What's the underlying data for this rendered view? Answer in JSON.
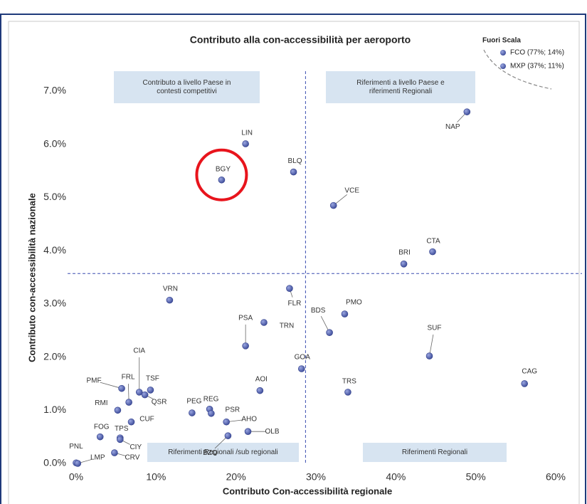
{
  "chart_data": {
    "type": "scatter",
    "title": "Contributo alla con-accessibilità per aeroporto",
    "xlabel": "Contributo Con-accessibilità regionale",
    "ylabel": "Contributo con-accessibilità nazionale",
    "xlim": [
      0,
      60
    ],
    "ylim": [
      0,
      7
    ],
    "xticks": [
      {
        "value": 0,
        "label": "0%"
      },
      {
        "value": 10,
        "label": "10%"
      },
      {
        "value": 20,
        "label": "20%"
      },
      {
        "value": 30,
        "label": "30%"
      },
      {
        "value": 40,
        "label": "40%"
      },
      {
        "value": 50,
        "label": "50%"
      },
      {
        "value": 60,
        "label": "60%"
      }
    ],
    "yticks": [
      {
        "value": 0,
        "label": "0.0%"
      },
      {
        "value": 1,
        "label": "1.0%"
      },
      {
        "value": 2,
        "label": "2.0%"
      },
      {
        "value": 3,
        "label": "3.0%"
      },
      {
        "value": 4,
        "label": "4.0%"
      },
      {
        "value": 5,
        "label": "5.0%"
      },
      {
        "value": 6,
        "label": "6.0%"
      },
      {
        "value": 7,
        "label": "7.0%"
      }
    ],
    "color": "#4a5aa8",
    "labels": [
      "LIN",
      "BGY",
      "BLQ",
      "VCE",
      "NAP",
      "CTA",
      "BRI",
      "VRN",
      "FLR",
      "PSA",
      "TRN",
      "BDS",
      "PMO",
      "SUF",
      "CAG",
      "TRS",
      "GOA",
      "AOI",
      "PMF",
      "FRL",
      "CIA",
      "TSF",
      "QSR",
      "RMI",
      "CUF",
      "FOG",
      "TPS",
      "CIY",
      "CRV",
      "PNL",
      "LMP",
      "PEG",
      "REG",
      "PSR",
      "AHO",
      "BZO",
      "OLB"
    ],
    "x": [
      21.2,
      18.2,
      27.2,
      32.2,
      48.9,
      44.6,
      41.0,
      11.7,
      26.7,
      21.2,
      23.5,
      31.7,
      33.6,
      44.2,
      56.1,
      34.0,
      28.2,
      23.0,
      5.7,
      6.6,
      7.9,
      9.3,
      8.6,
      5.2,
      6.9,
      3.0,
      5.5,
      5.5,
      4.8,
      0.0,
      0.2,
      14.5,
      16.7,
      16.9,
      18.8,
      19.0,
      21.5
    ],
    "values": [
      6.01,
      5.33,
      5.48,
      4.85,
      6.61,
      3.98,
      3.75,
      3.07,
      3.29,
      2.21,
      2.65,
      2.46,
      2.81,
      2.02,
      1.5,
      1.34,
      1.78,
      1.37,
      1.41,
      1.15,
      1.34,
      1.38,
      1.29,
      1.0,
      0.78,
      0.5,
      0.48,
      0.45,
      0.2,
      0.01,
      0.0,
      0.95,
      1.02,
      0.94,
      0.78,
      0.52,
      0.6
    ],
    "thresholds": {
      "x": 28.7,
      "y": 3.57
    },
    "highlight": "BGY",
    "legend": {
      "title": "Fuori Scala",
      "items": [
        "FCO (77%; 14%)",
        "MXP (37%; 11%)"
      ]
    },
    "quadrants": [
      {
        "lines": [
          "Contributo a livello Paese in",
          "contesti competitivi"
        ]
      },
      {
        "lines": [
          "Riferimenti a livello Paese e",
          "riferimenti Regionali"
        ]
      },
      {
        "lines": [
          "Riferimenti Regionali /sub regionali"
        ]
      },
      {
        "lines": [
          "Riferimenti  Regionali"
        ]
      }
    ]
  }
}
